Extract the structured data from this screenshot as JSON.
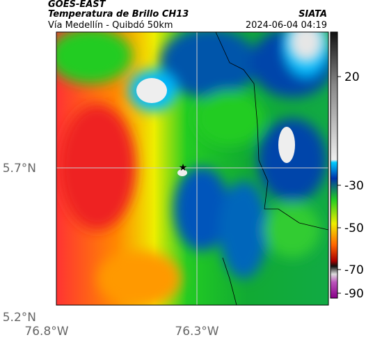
{
  "header": {
    "title": "GOES-EAST",
    "subtitle": "Temperatura de Brillo CH13",
    "location": "Vía Medellín - Quibdó 50km",
    "source": "SIATA",
    "datetime": "2024-06-04 04:19"
  },
  "map": {
    "lat_labels": [
      "5.7°N",
      "5.2°N"
    ],
    "lon_labels": [
      "76.8°W",
      "76.3°W"
    ]
  },
  "colorbar": {
    "tick_labels": [
      "20",
      "-30",
      "-50",
      "-70",
      "-90"
    ]
  }
}
